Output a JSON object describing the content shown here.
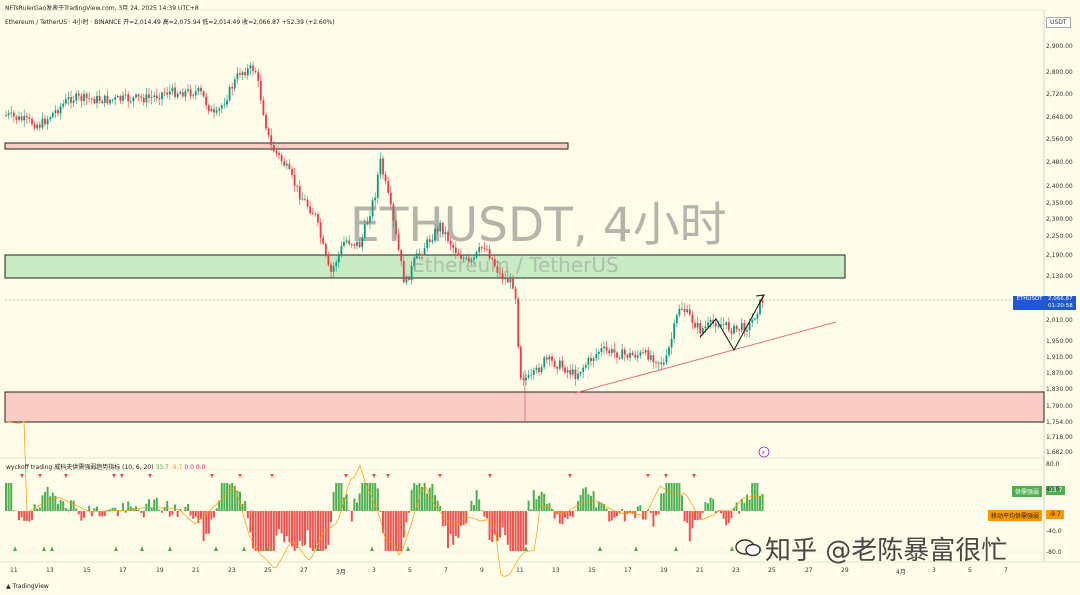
{
  "header": {
    "publisher": "NFTsRulerGao发表于TradingView.com, 3月 24, 2025 14:39 UTC+8",
    "symbol_line": "Ethereum / TetherUS · 4小时 · BINANCE 开=2,014.49 高=2,075.94 低=2,014.49 收=2,066.87 +52.39 (+2.60%)"
  },
  "watermark": {
    "title": "ETHUSDT, 4小时",
    "subtitle": "Ethereum / TetherUS"
  },
  "currency_label": "USDT",
  "price_tag": {
    "symbol": "ETHUSDT",
    "price": "2,066.87",
    "countdown": "01:20:58"
  },
  "indicator": {
    "title": "wyckoff trading 威科夫供需强弱趋势指标 (10, 6, 20)",
    "values": [
      "33.7",
      "-9.7",
      "0.0",
      "0.0"
    ],
    "tag_supply": "供需强弱",
    "tag_supply_value": "33.7",
    "tag_ma": "移动平均供需强弱",
    "tag_ma_value": "-9.7",
    "axis": [
      "80.0",
      "40.0",
      "-40.0",
      "-80.0"
    ]
  },
  "footer": {
    "logo": "TradingView"
  },
  "signature": "知乎 @老陈暴富很忙",
  "chart_data": {
    "type": "candlestick",
    "title": "ETHUSDT, 4小时",
    "y_ticks": [
      "2,900.00",
      "2,800.00",
      "2,720.00",
      "2,640.00",
      "2,560.00",
      "2,480.00",
      "2,400.00",
      "2,350.00",
      "2,300.00",
      "2,250.00",
      "2,190.00",
      "2,130.00",
      "2,066.87",
      "2,010.00",
      "1,950.00",
      "1,910.00",
      "1,870.00",
      "1,830.00",
      "1,790.00",
      "1,754.00",
      "1,718.00",
      "1,682.00"
    ],
    "x_ticks": [
      "11",
      "13",
      "15",
      "17",
      "19",
      "21",
      "23",
      "25",
      "27",
      "3月",
      "3",
      "5",
      "7",
      "9",
      "11",
      "13",
      "15",
      "17",
      "19",
      "21",
      "23",
      "25",
      "27",
      "29",
      "4月",
      "3",
      "5",
      "7"
    ],
    "zones": [
      {
        "name": "resistance-line",
        "y": 2540
      },
      {
        "name": "supply-zone",
        "low": 2140,
        "high": 2200
      },
      {
        "name": "demand-zone",
        "low": 1755,
        "high": 1825
      }
    ],
    "last_close": 2066.87,
    "colors": {
      "up": "#089981",
      "down": "#f23645",
      "zone_green": "#c8ebc3",
      "zone_red": "#fbcbc6",
      "price_tag": "#1f57d6"
    }
  }
}
